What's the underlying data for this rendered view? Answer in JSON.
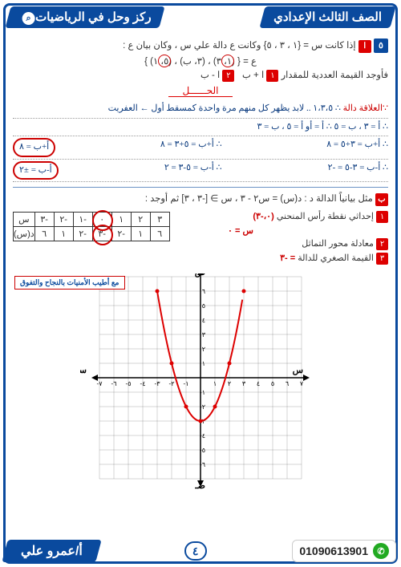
{
  "header": {
    "right": "ركز وحل في الرياضيات",
    "left": "الصف الثالث الإعدادي"
  },
  "q5": {
    "num": "٥",
    "let": "ا",
    "line1": "إذا كانت س = {١ ، ٣ ، ٥} وكانت ع دالة  علي س ، وكان بيان ع :",
    "line2": "ع = { (١، ٣)  ،  (٣، ب)  ،  (٥، ١) }",
    "line3_pre": "فأوجد القيمة العددية للمقدار ",
    "opt1": "١",
    "opt1_txt": "ا + ب",
    "opt2": "٢",
    "opt2_txt": "ا - ب"
  },
  "solution_title": "الحــــــل",
  "hw": {
    "l1a": "∵العلاقة دالة",
    "l1b": "∴ ١،٣،٥ .. لابد يظهر كل منهم مرة واحدة كمسقط أول ← العفريت",
    "l2": "∴ أ = ٣    ، ب = ٥    ∴    أ =    أو    أ = ٥    ، ب = ٣",
    "l3a": "∴ أ+ب = ٣+٥ = ٨",
    "l3b": "∴ أ+ب = ٥+٣ = ٨",
    "box1": "أ+ب = ٨",
    "l4a": "∴ أ-ب = ٣-٥ = -٢",
    "l4b": "∴ أ-ب = ٥-٣ = ٢",
    "box2": "أ-ب = ±٢"
  },
  "q_b": {
    "let": "ب",
    "text": "مثل بيانياً الدالة د : د(س) = س٢ - ٣  ،  س ∋ [-٣ ، ٣]  ثم أوجد :",
    "s1_n": "١",
    "s1_t": "إحداثي نقطة رأس المنحني",
    "s1_a": "(٠،-٣)",
    "s1_ext": "س = ٠",
    "s2_n": "٢",
    "s2_t": "معادلة محور التماثل",
    "s3_n": "٣",
    "s3_t": "القيمة الصغري للدالة",
    "s3_a": "= -٣"
  },
  "table": {
    "h": [
      "س",
      "-٣",
      "-٢",
      "-١",
      "٠",
      "١",
      "٢",
      "٣"
    ],
    "r": [
      "د(س)",
      "٦",
      "١",
      "-٢",
      "-٣",
      "-٢",
      "١",
      "٦"
    ]
  },
  "graph": {
    "xlabel_r": "س",
    "xlabel_l": "سـ",
    "ylabel_t": "ص",
    "ylabel_b": "صـ",
    "xrange": [
      -7,
      7
    ],
    "yrange": [
      -7,
      7
    ],
    "xticks": [
      "١",
      "٢",
      "٣",
      "٤",
      "٥",
      "٦",
      "٧"
    ],
    "xticks_neg": [
      "١-",
      "٢-",
      "٣-",
      "٤-",
      "٥-",
      "٦-",
      "٧-"
    ],
    "yticks": [
      "١",
      "٢",
      "٣",
      "٤",
      "٥",
      "٦"
    ],
    "yticks_neg": [
      "١-",
      "٢-",
      "٣-",
      "٤-",
      "٥-",
      "٦-"
    ],
    "curve_color": "#d00",
    "grid_color": "#555",
    "points": [
      [
        -3,
        6
      ],
      [
        -2,
        1
      ],
      [
        -1,
        -2
      ],
      [
        0,
        -3
      ],
      [
        1,
        -2
      ],
      [
        2,
        1
      ],
      [
        3,
        6
      ]
    ]
  },
  "wish": "مع أطيب الأمنيات بالنجاح والتفوق",
  "footer": {
    "phone": "01090613901",
    "page": "٤",
    "author": "أ/عمرو علي"
  },
  "colors": {
    "brand": "#0a4a9e",
    "accent": "#d00",
    "ink": "#0a3a7e"
  }
}
